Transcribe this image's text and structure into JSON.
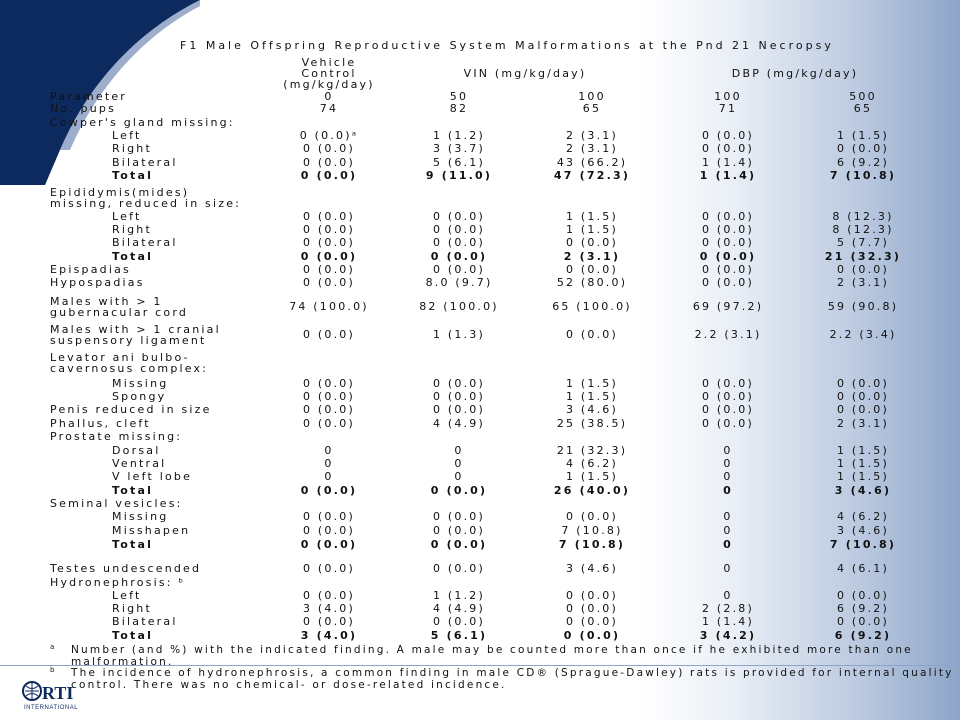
{
  "title": "F1 Male Offspring Reproductive System Malformations at the Pnd 21 Necropsy",
  "headers": {
    "vehicle": [
      "Vehicle",
      "Control",
      "(mg/kg/day)"
    ],
    "vin": "VIN (mg/kg/day)",
    "dbp": "DBP (mg/kg/day)"
  },
  "rows": [
    {
      "label": "Parameter",
      "indent": 0,
      "bold": false,
      "values": [
        "0",
        "50",
        "100",
        "100",
        "500"
      ]
    },
    {
      "label": "No. pups",
      "indent": 0,
      "bold": false,
      "values": [
        "74",
        "82",
        "65",
        "71",
        "65"
      ]
    },
    {
      "label": "Cowper's gland missing:",
      "indent": 0,
      "bold": false,
      "values": [
        "",
        "",
        "",
        "",
        ""
      ]
    },
    {
      "label": "Left",
      "indent": 1,
      "bold": false,
      "values": [
        "0 (0.0)ᵃ",
        "1 (1.2)",
        "2 (3.1)",
        "0 (0.0)",
        "1 (1.5)"
      ]
    },
    {
      "label": "Right",
      "indent": 1,
      "bold": false,
      "values": [
        "0 (0.0)",
        "3 (3.7)",
        "2 (3.1)",
        "0 (0.0)",
        "0 (0.0)"
      ]
    },
    {
      "label": "Bilateral",
      "indent": 1,
      "bold": false,
      "values": [
        "0 (0.0)",
        "5 (6.1)",
        "43 (66.2)",
        "1 (1.4)",
        "6 (9.2)"
      ]
    },
    {
      "label": "Total",
      "indent": 1,
      "bold": true,
      "values": [
        "0 (0.0)",
        "9 (11.0)",
        "47 (72.3)",
        "1 (1.4)",
        "7 (10.8)"
      ]
    },
    {
      "label": "Epididymis(mides)",
      "label2": "missing, reduced in size:",
      "indent": 0,
      "bold": false,
      "values": [
        "",
        "",
        "",
        "",
        ""
      ]
    },
    {
      "label": "Left",
      "indent": 1,
      "bold": false,
      "values": [
        "0 (0.0)",
        "0 (0.0)",
        "1 (1.5)",
        "0 (0.0)",
        "8 (12.3)"
      ]
    },
    {
      "label": "Right",
      "indent": 1,
      "bold": false,
      "values": [
        "0 (0.0)",
        "0 (0.0)",
        "1 (1.5)",
        "0 (0.0)",
        "8 (12.3)"
      ]
    },
    {
      "label": "Bilateral",
      "indent": 1,
      "bold": false,
      "values": [
        "0 (0.0)",
        "0 (0.0)",
        "0 (0.0)",
        "0 (0.0)",
        "5 (7.7)"
      ]
    },
    {
      "label": "Total",
      "indent": 1,
      "bold": true,
      "values": [
        "0 (0.0)",
        "0 (0.0)",
        "2 (3.1)",
        "0 (0.0)",
        "21 (32.3)"
      ]
    },
    {
      "label": "Epispadias",
      "indent": 0,
      "bold": false,
      "values": [
        "0 (0.0)",
        "0 (0.0)",
        "0 (0.0)",
        "0 (0.0)",
        "0 (0.0)"
      ]
    },
    {
      "label": "Hypospadias",
      "indent": 0,
      "bold": false,
      "values": [
        "0 (0.0)",
        "8.0 (9.7)",
        "52 (80.0)",
        "0 (0.0)",
        "2 (3.1)"
      ]
    },
    {
      "label": "Males with > 1",
      "label2": "gubernacular cord",
      "indent": 0,
      "bold": false,
      "values": [
        "74 (100.0)",
        "82 (100.0)",
        "65 (100.0)",
        "69 (97.2)",
        "59 (90.8)"
      ]
    },
    {
      "label": "Males with > 1 cranial",
      "label2": "suspensory ligament",
      "indent": 0,
      "bold": false,
      "values": [
        "0 (0.0)",
        "1 (1.3)",
        "0 (0.0)",
        "2.2 (3.1)",
        "2.2 (3.4)"
      ]
    },
    {
      "label": "Levator ani bulbo-",
      "label2": "cavernosus complex:",
      "indent": 0,
      "bold": false,
      "values": [
        "",
        "",
        "",
        "",
        ""
      ]
    },
    {
      "label": "Missing",
      "indent": 1,
      "bold": false,
      "values": [
        "0 (0.0)",
        "0 (0.0)",
        "1 (1.5)",
        "0 (0.0)",
        "0 (0.0)"
      ]
    },
    {
      "label": "Spongy",
      "indent": 1,
      "bold": false,
      "values": [
        "0 (0.0)",
        "0 (0.0)",
        "1 (1.5)",
        "0 (0.0)",
        "0 (0.0)"
      ]
    },
    {
      "label": "Penis reduced in size",
      "indent": 0,
      "bold": false,
      "values": [
        "0 (0.0)",
        "0 (0.0)",
        "3 (4.6)",
        "0 (0.0)",
        "0 (0.0)"
      ]
    },
    {
      "label": "Phallus, cleft",
      "indent": 0,
      "bold": false,
      "values": [
        "0 (0.0)",
        "4 (4.9)",
        "25 (38.5)",
        "0 (0.0)",
        "2 (3.1)"
      ]
    },
    {
      "label": "Prostate missing:",
      "indent": 0,
      "bold": false,
      "values": [
        "",
        "",
        "",
        "",
        ""
      ]
    },
    {
      "label": "Dorsal",
      "indent": 1,
      "bold": false,
      "values": [
        "0",
        "0",
        "21 (32.3)",
        "0",
        "1 (1.5)"
      ]
    },
    {
      "label": "Ventral",
      "indent": 1,
      "bold": false,
      "values": [
        "0",
        "0",
        "4 (6.2)",
        "0",
        "1 (1.5)"
      ]
    },
    {
      "label": "V left lobe",
      "indent": 1,
      "bold": false,
      "values": [
        "0",
        "0",
        "1 (1.5)",
        "0",
        "1 (1.5)"
      ]
    },
    {
      "label": "Total",
      "indent": 1,
      "bold": true,
      "values": [
        "0 (0.0)",
        "0 (0.0)",
        "26 (40.0)",
        "0",
        "3 (4.6)"
      ]
    },
    {
      "label": "Seminal vesicles:",
      "indent": 0,
      "bold": false,
      "values": [
        "",
        "",
        "",
        "",
        ""
      ]
    },
    {
      "label": "Missing",
      "indent": 1,
      "bold": false,
      "values": [
        "0 (0.0)",
        "0 (0.0)",
        "0 (0.0)",
        "0",
        "4 (6.2)"
      ]
    },
    {
      "label": "Misshapen",
      "indent": 1,
      "bold": false,
      "values": [
        "0 (0.0)",
        "0 (0.0)",
        "7 (10.8)",
        "0",
        "3 (4.6)"
      ]
    },
    {
      "label": "Total",
      "indent": 1,
      "bold": true,
      "values": [
        "0 (0.0)",
        "0 (0.0)",
        "7 (10.8)",
        "0",
        "7 (10.8)"
      ]
    },
    {
      "label": "Testes undescended",
      "indent": 0,
      "bold": false,
      "values": [
        "0 (0.0)",
        "0 (0.0)",
        "3 (4.6)",
        "0",
        "4 (6.1)"
      ]
    },
    {
      "label": "Hydronephrosis: ᵇ",
      "indent": 0,
      "bold": false,
      "values": [
        "",
        "",
        "",
        "",
        ""
      ]
    },
    {
      "label": "Left",
      "indent": 1,
      "bold": false,
      "values": [
        "0 (0.0)",
        "1 (1.2)",
        "0 (0.0)",
        "0",
        "0 (0.0)"
      ]
    },
    {
      "label": "Right",
      "indent": 1,
      "bold": false,
      "values": [
        "3 (4.0)",
        "4 (4.9)",
        "0 (0.0)",
        "2 (2.8)",
        "6 (9.2)"
      ]
    },
    {
      "label": "Bilateral",
      "indent": 1,
      "bold": false,
      "values": [
        "0 (0.0)",
        "0 (0.0)",
        "0 (0.0)",
        "1 (1.4)",
        "0 (0.0)"
      ]
    },
    {
      "label": "Total",
      "indent": 1,
      "bold": true,
      "values": [
        "3 (4.0)",
        "5 (6.1)",
        "0 (0.0)",
        "3 (4.2)",
        "6 (9.2)"
      ]
    }
  ],
  "footnotes": [
    {
      "mark": "a",
      "text": "Number (and %) with the indicated finding.  A male may be counted more than once if he exhibited more than one",
      "text2": "malformation."
    },
    {
      "mark": "b",
      "text": "The incidence of hydronephrosis, a common finding in male CD® (Sprague-Dawley) rats is provided for internal quality",
      "text2": "control.  There was no chemical- or dose-related incidence."
    }
  ],
  "logo": {
    "name": "RTI",
    "sub": "INTERNATIONAL"
  },
  "colors": {
    "navy": "#0d2a5e",
    "accent": "#8ea5c9"
  }
}
